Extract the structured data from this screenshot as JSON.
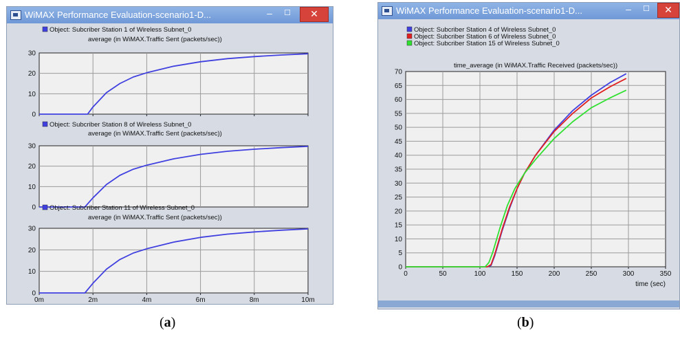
{
  "left_window": {
    "title": "WiMAX Performance Evaluation-scenario1-D...",
    "minimize": "–",
    "maximize": "☐",
    "close": "✕",
    "caption_open": "(",
    "caption_letter": "a",
    "caption_close": ")"
  },
  "right_window": {
    "title": "WiMAX Performance Evaluation-scenario1-D...",
    "minimize": "–",
    "maximize": "☐",
    "close": "✕",
    "caption_open": "(",
    "caption_letter": "b",
    "caption_close": ")"
  },
  "colors": {
    "plot_bg": "#f0f0f0",
    "window_bg": "#d6dbe4",
    "blue": "#4040e0",
    "red": "#e02020",
    "green": "#30e030"
  },
  "chart_data": [
    {
      "type": "line",
      "legend": "Object: Subcriber Station 1 of Wireless Subnet_0",
      "title": "average (in WiMAX.Traffic Sent (packets/sec))",
      "x_ticks": [
        "0m",
        "2m",
        "4m",
        "6m",
        "8m",
        "10m"
      ],
      "x_tick_values": [
        0,
        2,
        4,
        6,
        8,
        10
      ],
      "y_ticks": [
        "0",
        "10",
        "20",
        "30"
      ],
      "ylim": [
        0,
        30
      ],
      "xlim": [
        0,
        10
      ],
      "series": [
        {
          "name": "Object: Subcriber Station 1 of Wireless Subnet_0",
          "color": "#4040e0",
          "x": [
            0,
            1.8,
            2.0,
            2.5,
            3.0,
            3.5,
            4.0,
            5.0,
            6.0,
            7.0,
            8.0,
            9.0,
            10.0
          ],
          "y": [
            0,
            0,
            3.5,
            10.5,
            15.0,
            18.2,
            20.3,
            23.5,
            25.7,
            27.2,
            28.2,
            29.0,
            29.6
          ]
        }
      ]
    },
    {
      "type": "line",
      "legend": "Object: Subcriber Station 8 of Wireless Subnet_0",
      "title": "average (in WiMAX.Traffic Sent (packets/sec))",
      "x_ticks": [],
      "y_ticks": [
        "0",
        "10",
        "20",
        "30"
      ],
      "ylim": [
        0,
        30
      ],
      "xlim": [
        0,
        10
      ],
      "series": [
        {
          "name": "Object: Subcriber Station 8 of Wireless Subnet_0",
          "color": "#4040e0",
          "x": [
            0,
            1.7,
            2.0,
            2.5,
            3.0,
            3.5,
            4.0,
            5.0,
            6.0,
            7.0,
            8.0,
            9.0,
            10.0
          ],
          "y": [
            0,
            0,
            4.5,
            11.0,
            15.5,
            18.5,
            20.5,
            23.6,
            25.8,
            27.3,
            28.3,
            29.1,
            29.7
          ]
        }
      ]
    },
    {
      "type": "line",
      "legend": "Object: Subcriber Station 11 of Wireless Subnet_0",
      "title": "average (in WiMAX.Traffic Sent (packets/sec))",
      "x_ticks": [
        "0m",
        "2m",
        "4m",
        "6m",
        "8m",
        "10m"
      ],
      "x_tick_values": [
        0,
        2,
        4,
        6,
        8,
        10
      ],
      "y_ticks": [
        "0",
        "10",
        "20",
        "30"
      ],
      "ylim": [
        0,
        30
      ],
      "xlim": [
        0,
        10
      ],
      "series": [
        {
          "name": "Object: Subcriber Station 11 of Wireless Subnet_0",
          "color": "#4040e0",
          "x": [
            0,
            1.7,
            2.0,
            2.5,
            3.0,
            3.5,
            4.0,
            5.0,
            6.0,
            7.0,
            8.0,
            9.0,
            10.0
          ],
          "y": [
            0,
            0,
            4.5,
            11.0,
            15.5,
            18.5,
            20.5,
            23.6,
            25.8,
            27.3,
            28.3,
            29.1,
            29.7
          ]
        }
      ]
    },
    {
      "type": "line",
      "title": "time_average (in WiMAX.Traffic Received (packets/sec))",
      "xlabel": "time (sec)",
      "x_ticks": [
        "0",
        "50",
        "100",
        "150",
        "200",
        "250",
        "300",
        "350"
      ],
      "x_tick_values": [
        0,
        50,
        100,
        150,
        200,
        250,
        300,
        350
      ],
      "y_ticks": [
        "0",
        "5",
        "10",
        "15",
        "20",
        "25",
        "30",
        "35",
        "40",
        "45",
        "50",
        "55",
        "60",
        "65",
        "70"
      ],
      "ylim": [
        0,
        70
      ],
      "xlim": [
        0,
        350
      ],
      "series": [
        {
          "name": "Object: Subcriber Station 4 of Wireless Subnet_0",
          "color": "#4040e0",
          "x": [
            0,
            110,
            115,
            120,
            130,
            140,
            150,
            160,
            175,
            200,
            225,
            250,
            275,
            297
          ],
          "y": [
            0,
            0,
            0.5,
            4,
            13,
            21,
            28,
            33.5,
            40,
            49,
            56,
            61.5,
            66,
            69.2
          ]
        },
        {
          "name": "Object: Subcriber Station 6 of Wireless Subnet_0",
          "color": "#e02020",
          "x": [
            0,
            110,
            115,
            120,
            130,
            140,
            150,
            160,
            175,
            200,
            225,
            250,
            275,
            297
          ],
          "y": [
            0,
            0,
            0.8,
            4.5,
            13.5,
            21.5,
            28,
            33.5,
            40,
            48.5,
            55,
            60.5,
            64.5,
            67.5
          ]
        },
        {
          "name": "Object: Subcriber Station 15 of Wireless Subnet_0",
          "color": "#30e030",
          "x": [
            0,
            107,
            112,
            117,
            127,
            137,
            147,
            160,
            175,
            200,
            225,
            250,
            275,
            297
          ],
          "y": [
            0,
            0,
            1.5,
            5,
            14,
            22,
            28,
            33.5,
            38.5,
            46,
            52,
            57,
            60.5,
            63.3
          ]
        }
      ]
    }
  ]
}
